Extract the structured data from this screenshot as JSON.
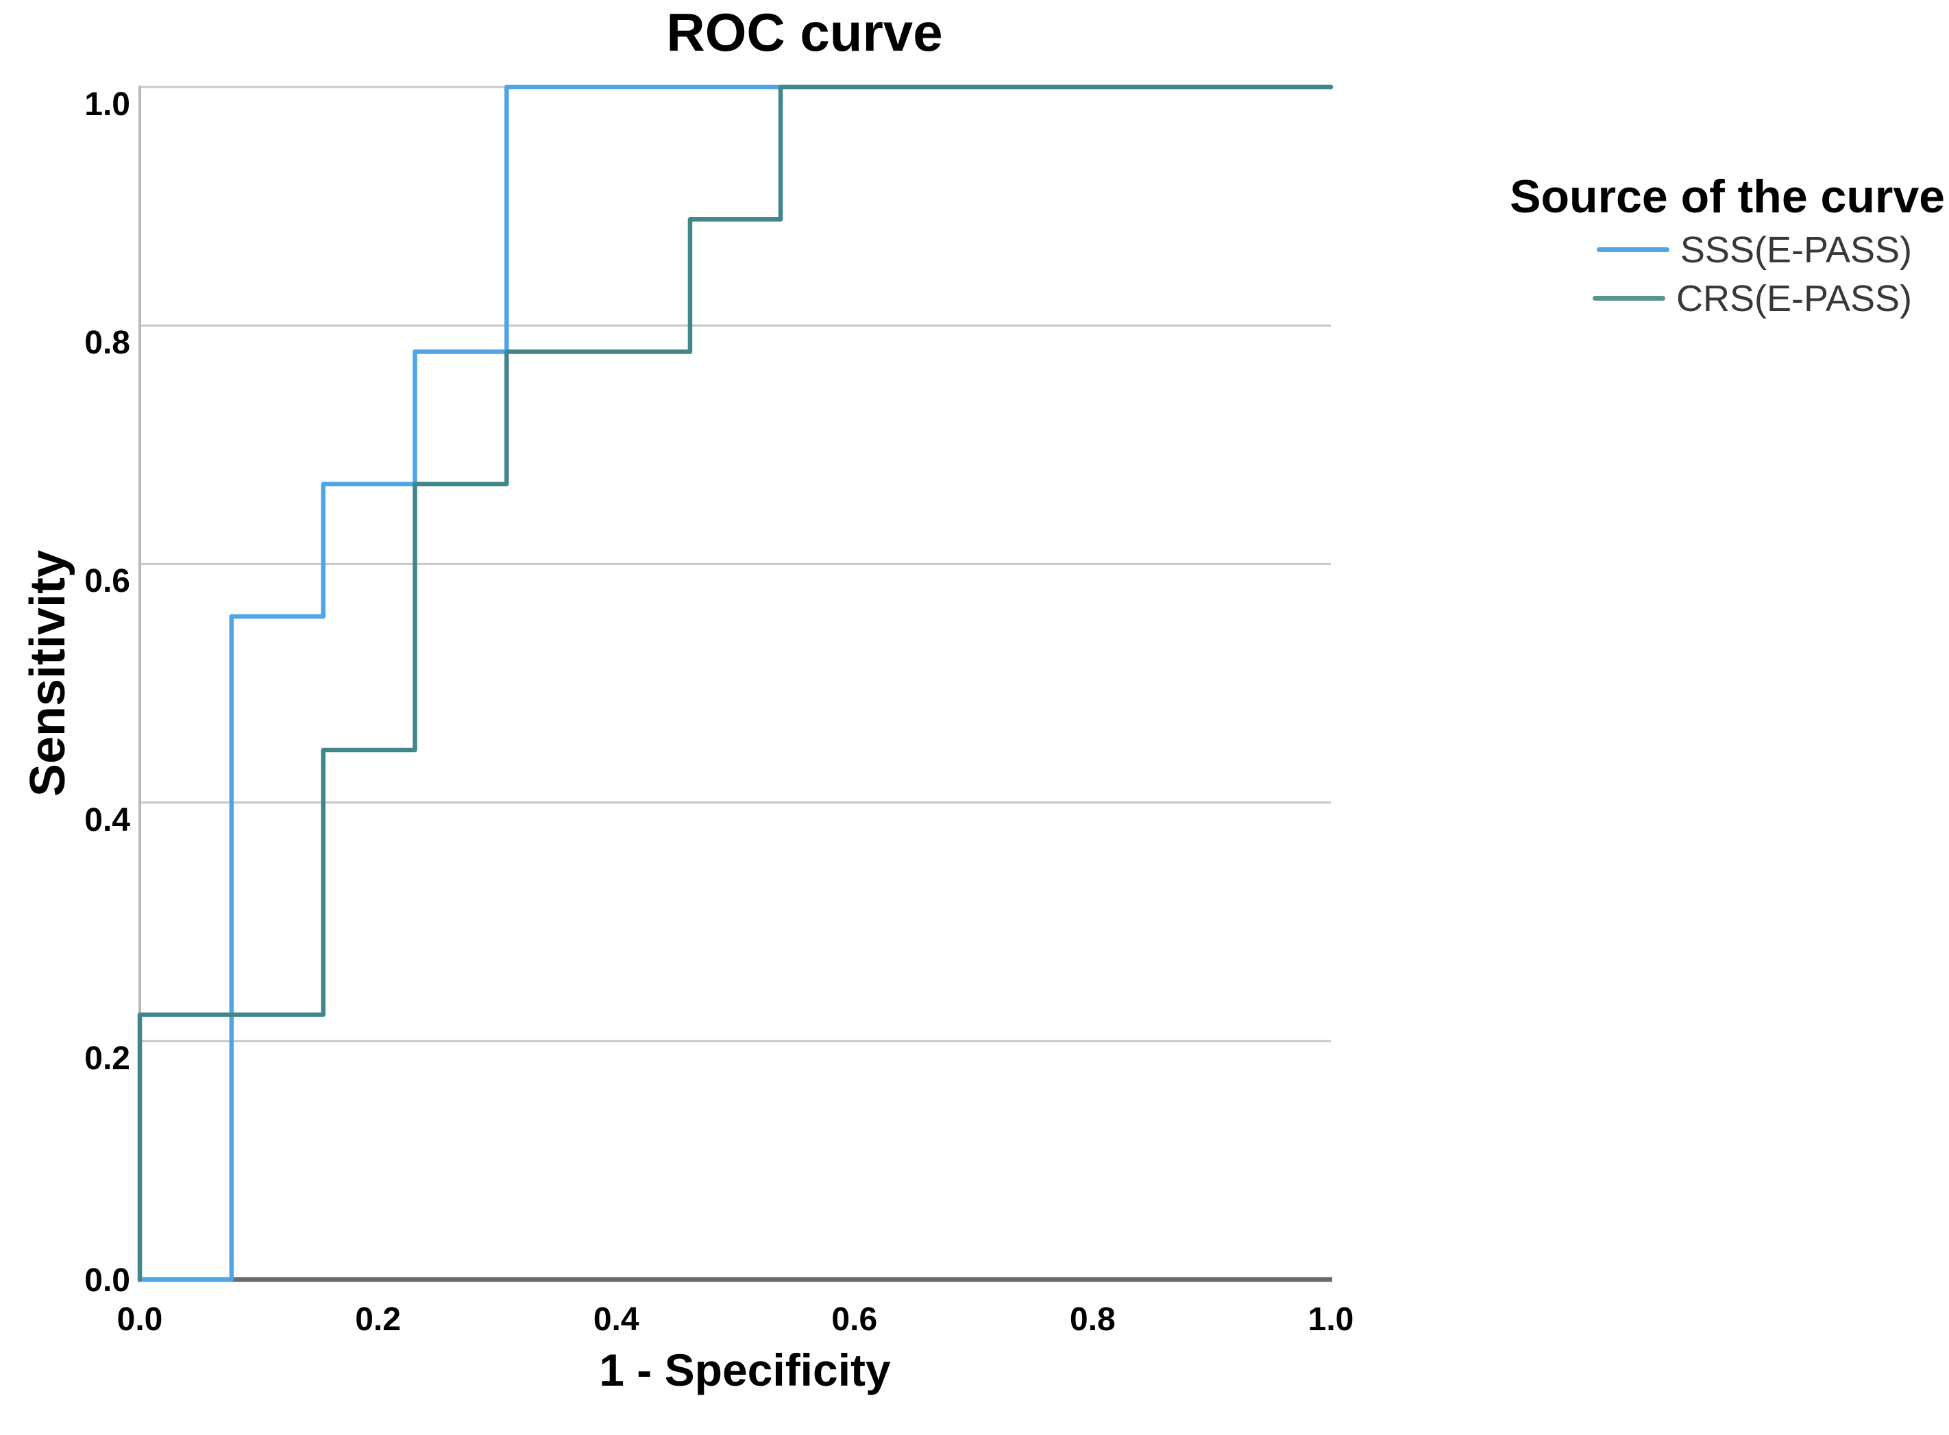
{
  "chart_data": {
    "type": "line",
    "subtype": "roc-step-curves",
    "title": "ROC curve",
    "xlabel": "1 - Specificity",
    "ylabel": "Sensitivity",
    "xlim": [
      0,
      1
    ],
    "ylim": [
      0,
      1
    ],
    "grid": "horizontal-only",
    "xticks": {
      "values": [
        0,
        0.2,
        0.4,
        0.6,
        0.8,
        1.0
      ],
      "labels": [
        "0.0",
        "0.2",
        "0.4",
        "0.6",
        "0.8",
        "1.0"
      ]
    },
    "yticks": {
      "values": [
        0,
        0.2,
        0.4,
        0.6,
        0.8,
        1.0
      ],
      "labels": [
        "0.0",
        "0.2",
        "0.4",
        "0.6",
        "0.8",
        "1.0"
      ]
    },
    "legend": {
      "title": "Source of the curve",
      "position": "right"
    },
    "series": [
      {
        "name": "SSS(E-PASS)",
        "color": "#4FA5E6",
        "legend_color": "#4FA5E6",
        "points": [
          [
            0,
            0
          ],
          [
            0.077,
            0
          ],
          [
            0.077,
            0.556
          ],
          [
            0.154,
            0.556
          ],
          [
            0.154,
            0.667
          ],
          [
            0.231,
            0.667
          ],
          [
            0.231,
            0.778
          ],
          [
            0.308,
            0.778
          ],
          [
            0.308,
            1.0
          ],
          [
            1.0,
            1.0
          ]
        ]
      },
      {
        "name": "CRS(E-PASS)",
        "color": "#41868D",
        "legend_color": "#5A938F",
        "points": [
          [
            0,
            0
          ],
          [
            0,
            0.222
          ],
          [
            0.154,
            0.222
          ],
          [
            0.154,
            0.444
          ],
          [
            0.231,
            0.444
          ],
          [
            0.231,
            0.667
          ],
          [
            0.308,
            0.667
          ],
          [
            0.308,
            0.778
          ],
          [
            0.462,
            0.778
          ],
          [
            0.462,
            0.889
          ],
          [
            0.538,
            0.889
          ],
          [
            0.538,
            1.0
          ],
          [
            1.0,
            1.0
          ]
        ]
      }
    ],
    "colors": {
      "grid": "#c8c8c8",
      "axis_y": "#b8b8b8",
      "axis_x": "#696969",
      "text": "#000000",
      "legend_text": "#383838",
      "background": "#ffffff"
    }
  }
}
